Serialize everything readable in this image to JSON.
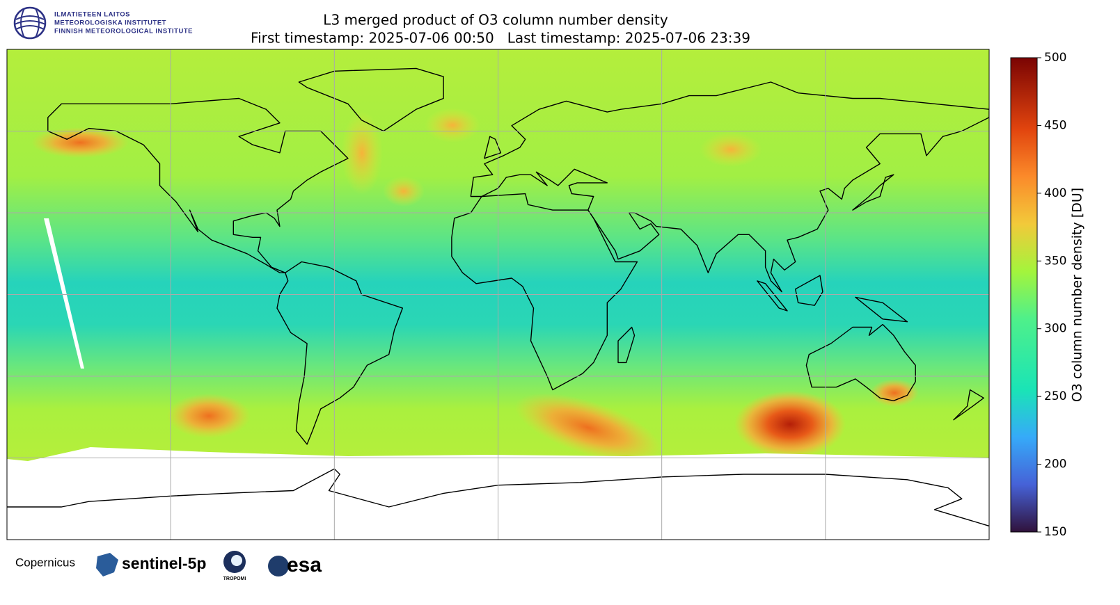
{
  "logo": {
    "lines": [
      "ILMATIETEEN LAITOS",
      "METEOROLOGISKA INSTITUTET",
      "FINNISH METEOROLOGICAL INSTITUTE"
    ]
  },
  "chart_data": {
    "type": "map",
    "title": "L3 merged product of O3 column number density",
    "subtitle": "First timestamp: 2025-07-06 00:50   Last timestamp: 2025-07-06 23:39",
    "colorbar": {
      "label": "O3 column number density [DU]",
      "lim": [
        150,
        500
      ],
      "ticks": [
        150,
        200,
        250,
        300,
        350,
        400,
        450,
        500
      ],
      "colormap": "turbo"
    },
    "grid": true
  },
  "footer": {
    "logos": [
      "Copernicus",
      "sentinel-5p",
      "TROPOMI",
      "esa"
    ]
  }
}
